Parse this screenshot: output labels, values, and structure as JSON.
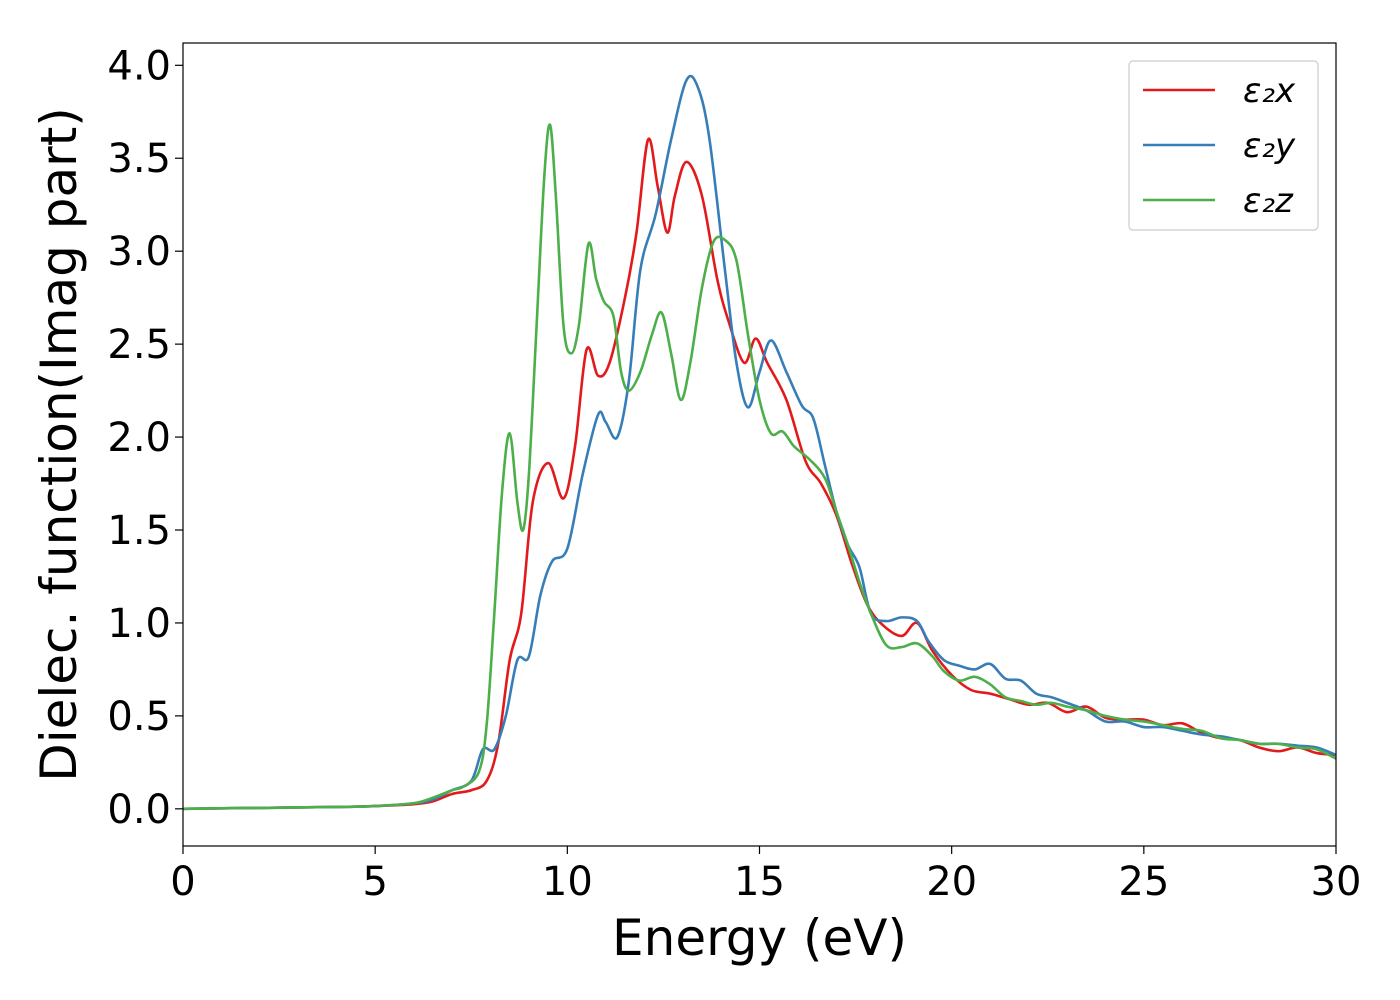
{
  "chart_data": {
    "type": "line",
    "xlabel": "Energy (eV)",
    "ylabel": "Dielec. function(Imag part)",
    "xlim": [
      0,
      30
    ],
    "ylim": [
      -0.2,
      4.12
    ],
    "x_ticks": [
      0,
      5,
      10,
      15,
      20,
      25,
      30
    ],
    "x_tick_labels": [
      "0",
      "5",
      "10",
      "15",
      "20",
      "25",
      "30"
    ],
    "y_ticks": [
      0.0,
      0.5,
      1.0,
      1.5,
      2.0,
      2.5,
      3.0,
      3.5,
      4.0
    ],
    "y_tick_labels": [
      "0.0",
      "0.5",
      "1.0",
      "1.5",
      "2.0",
      "2.5",
      "3.0",
      "3.5",
      "4.0"
    ],
    "grid": false,
    "legend_position": "top-right",
    "series": [
      {
        "name": "ε₂x",
        "color": "#e31a1c",
        "points": [
          [
            0,
            0
          ],
          [
            2,
            0.005
          ],
          [
            4,
            0.01
          ],
          [
            5,
            0.015
          ],
          [
            6,
            0.025
          ],
          [
            6.5,
            0.04
          ],
          [
            7,
            0.08
          ],
          [
            7.5,
            0.1
          ],
          [
            7.9,
            0.15
          ],
          [
            8.2,
            0.35
          ],
          [
            8.5,
            0.8
          ],
          [
            8.8,
            1.05
          ],
          [
            9.1,
            1.65
          ],
          [
            9.5,
            1.86
          ],
          [
            9.9,
            1.67
          ],
          [
            10.2,
            1.95
          ],
          [
            10.5,
            2.47
          ],
          [
            10.8,
            2.33
          ],
          [
            11.1,
            2.4
          ],
          [
            11.5,
            2.75
          ],
          [
            11.8,
            3.1
          ],
          [
            12.1,
            3.6
          ],
          [
            12.35,
            3.35
          ],
          [
            12.6,
            3.1
          ],
          [
            12.8,
            3.3
          ],
          [
            13.1,
            3.48
          ],
          [
            13.5,
            3.3
          ],
          [
            13.9,
            2.85
          ],
          [
            14.2,
            2.62
          ],
          [
            14.6,
            2.4
          ],
          [
            14.9,
            2.53
          ],
          [
            15.2,
            2.4
          ],
          [
            15.7,
            2.2
          ],
          [
            16.2,
            1.87
          ],
          [
            16.6,
            1.75
          ],
          [
            17.0,
            1.58
          ],
          [
            17.4,
            1.32
          ],
          [
            17.8,
            1.1
          ],
          [
            18.2,
            0.99
          ],
          [
            18.7,
            0.93
          ],
          [
            19.1,
            1.0
          ],
          [
            19.5,
            0.85
          ],
          [
            20.0,
            0.72
          ],
          [
            20.5,
            0.64
          ],
          [
            21.0,
            0.62
          ],
          [
            21.5,
            0.59
          ],
          [
            22.0,
            0.56
          ],
          [
            22.5,
            0.57
          ],
          [
            23.0,
            0.52
          ],
          [
            23.5,
            0.55
          ],
          [
            24.0,
            0.49
          ],
          [
            24.5,
            0.48
          ],
          [
            25.0,
            0.48
          ],
          [
            25.5,
            0.45
          ],
          [
            26.0,
            0.46
          ],
          [
            26.5,
            0.41
          ],
          [
            27.0,
            0.38
          ],
          [
            27.5,
            0.37
          ],
          [
            28.0,
            0.33
          ],
          [
            28.5,
            0.31
          ],
          [
            29.0,
            0.33
          ],
          [
            29.5,
            0.3
          ],
          [
            30.0,
            0.29
          ]
        ]
      },
      {
        "name": "ε₂y",
        "color": "#377eb8",
        "points": [
          [
            0,
            0
          ],
          [
            2,
            0.005
          ],
          [
            4,
            0.01
          ],
          [
            5,
            0.015
          ],
          [
            6,
            0.03
          ],
          [
            6.5,
            0.05
          ],
          [
            7,
            0.1
          ],
          [
            7.5,
            0.15
          ],
          [
            7.8,
            0.32
          ],
          [
            8.1,
            0.32
          ],
          [
            8.4,
            0.5
          ],
          [
            8.7,
            0.8
          ],
          [
            9.0,
            0.82
          ],
          [
            9.3,
            1.15
          ],
          [
            9.6,
            1.33
          ],
          [
            10.0,
            1.4
          ],
          [
            10.4,
            1.8
          ],
          [
            10.8,
            2.12
          ],
          [
            11.0,
            2.08
          ],
          [
            11.3,
            2.0
          ],
          [
            11.6,
            2.3
          ],
          [
            11.9,
            2.9
          ],
          [
            12.3,
            3.2
          ],
          [
            12.7,
            3.6
          ],
          [
            13.1,
            3.92
          ],
          [
            13.4,
            3.88
          ],
          [
            13.7,
            3.6
          ],
          [
            14.1,
            2.9
          ],
          [
            14.4,
            2.4
          ],
          [
            14.7,
            2.16
          ],
          [
            15.0,
            2.35
          ],
          [
            15.3,
            2.52
          ],
          [
            15.7,
            2.35
          ],
          [
            16.1,
            2.17
          ],
          [
            16.4,
            2.1
          ],
          [
            16.7,
            1.85
          ],
          [
            17.0,
            1.6
          ],
          [
            17.3,
            1.42
          ],
          [
            17.6,
            1.3
          ],
          [
            17.9,
            1.05
          ],
          [
            18.3,
            1.01
          ],
          [
            18.7,
            1.03
          ],
          [
            19.1,
            1.01
          ],
          [
            19.4,
            0.9
          ],
          [
            19.8,
            0.8
          ],
          [
            20.2,
            0.77
          ],
          [
            20.6,
            0.75
          ],
          [
            21.0,
            0.78
          ],
          [
            21.4,
            0.7
          ],
          [
            21.8,
            0.69
          ],
          [
            22.2,
            0.62
          ],
          [
            22.6,
            0.6
          ],
          [
            23.0,
            0.57
          ],
          [
            23.5,
            0.53
          ],
          [
            24.0,
            0.47
          ],
          [
            24.5,
            0.47
          ],
          [
            25.0,
            0.44
          ],
          [
            25.5,
            0.44
          ],
          [
            26.0,
            0.42
          ],
          [
            26.5,
            0.4
          ],
          [
            27.0,
            0.39
          ],
          [
            27.5,
            0.37
          ],
          [
            28.0,
            0.35
          ],
          [
            28.5,
            0.35
          ],
          [
            29.0,
            0.34
          ],
          [
            29.5,
            0.33
          ],
          [
            30.0,
            0.29
          ]
        ]
      },
      {
        "name": "ε₂z",
        "color": "#4daf4a",
        "points": [
          [
            0,
            0
          ],
          [
            2,
            0.005
          ],
          [
            4,
            0.01
          ],
          [
            5,
            0.015
          ],
          [
            6,
            0.03
          ],
          [
            6.5,
            0.06
          ],
          [
            7,
            0.1
          ],
          [
            7.3,
            0.12
          ],
          [
            7.7,
            0.2
          ],
          [
            7.9,
            0.45
          ],
          [
            8.1,
            1.05
          ],
          [
            8.3,
            1.7
          ],
          [
            8.5,
            2.02
          ],
          [
            8.7,
            1.65
          ],
          [
            8.85,
            1.5
          ],
          [
            9.0,
            1.8
          ],
          [
            9.2,
            2.6
          ],
          [
            9.4,
            3.4
          ],
          [
            9.55,
            3.68
          ],
          [
            9.7,
            3.3
          ],
          [
            9.9,
            2.6
          ],
          [
            10.1,
            2.45
          ],
          [
            10.3,
            2.6
          ],
          [
            10.55,
            3.04
          ],
          [
            10.75,
            2.85
          ],
          [
            10.95,
            2.73
          ],
          [
            11.2,
            2.65
          ],
          [
            11.4,
            2.35
          ],
          [
            11.6,
            2.25
          ],
          [
            11.9,
            2.35
          ],
          [
            12.2,
            2.55
          ],
          [
            12.45,
            2.67
          ],
          [
            12.7,
            2.45
          ],
          [
            12.95,
            2.2
          ],
          [
            13.2,
            2.4
          ],
          [
            13.5,
            2.8
          ],
          [
            13.8,
            3.05
          ],
          [
            14.1,
            3.06
          ],
          [
            14.4,
            2.95
          ],
          [
            14.7,
            2.55
          ],
          [
            15.0,
            2.2
          ],
          [
            15.3,
            2.02
          ],
          [
            15.6,
            2.03
          ],
          [
            15.9,
            1.95
          ],
          [
            16.3,
            1.88
          ],
          [
            16.7,
            1.78
          ],
          [
            17.0,
            1.6
          ],
          [
            17.3,
            1.42
          ],
          [
            17.6,
            1.22
          ],
          [
            17.9,
            1.05
          ],
          [
            18.3,
            0.88
          ],
          [
            18.7,
            0.87
          ],
          [
            19.1,
            0.89
          ],
          [
            19.5,
            0.82
          ],
          [
            19.8,
            0.74
          ],
          [
            20.2,
            0.69
          ],
          [
            20.6,
            0.71
          ],
          [
            21.0,
            0.67
          ],
          [
            21.4,
            0.6
          ],
          [
            21.8,
            0.58
          ],
          [
            22.2,
            0.56
          ],
          [
            22.6,
            0.57
          ],
          [
            23.0,
            0.55
          ],
          [
            23.5,
            0.53
          ],
          [
            24.0,
            0.5
          ],
          [
            24.5,
            0.48
          ],
          [
            25.0,
            0.47
          ],
          [
            25.5,
            0.45
          ],
          [
            26.0,
            0.43
          ],
          [
            26.5,
            0.42
          ],
          [
            27.0,
            0.38
          ],
          [
            27.5,
            0.37
          ],
          [
            28.0,
            0.35
          ],
          [
            28.5,
            0.35
          ],
          [
            29.0,
            0.33
          ],
          [
            29.5,
            0.32
          ],
          [
            30.0,
            0.27
          ]
        ]
      }
    ]
  }
}
